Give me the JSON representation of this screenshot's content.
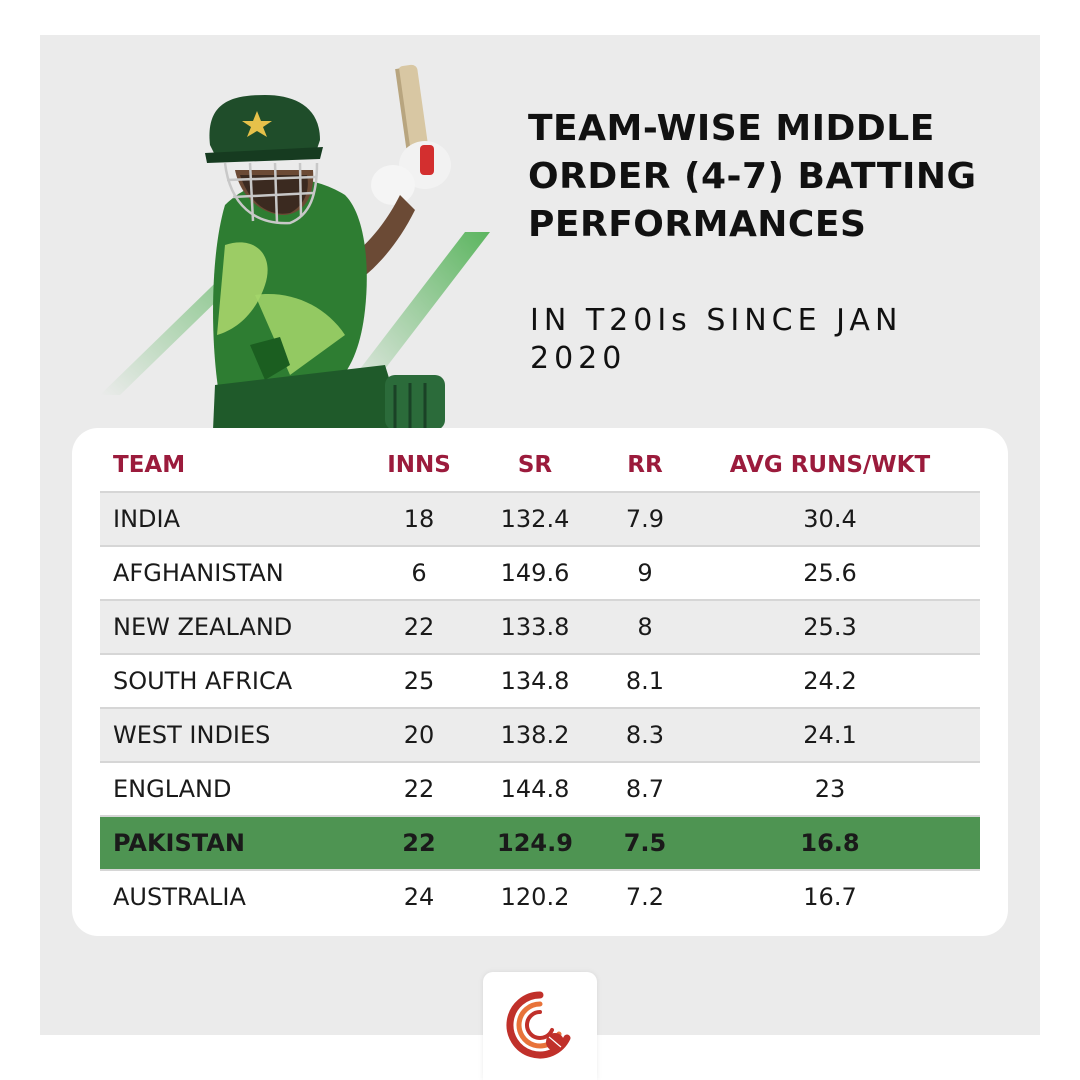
{
  "colors": {
    "background": "#ebebeb",
    "header_text": "#9b1b3c",
    "highlight_row": "#4e9452",
    "accent_green": "#4caf50",
    "logo_red": "#c0302a",
    "logo_orange": "#e8733a"
  },
  "heading": {
    "title": "TEAM-WISE MIDDLE ORDER (4-7) BATTING PERFORMANCES",
    "subtitle": "IN T20Is SINCE JAN 2020"
  },
  "icons": {
    "player": "cricket-batsman-image",
    "logo": "cricket-ball-logo-icon"
  },
  "chart_data": {
    "type": "table",
    "columns": [
      "TEAM",
      "INNS",
      "SR",
      "RR",
      "AVG RUNS/WKT"
    ],
    "rows": [
      [
        "INDIA",
        "18",
        "132.4",
        "7.9",
        "30.4"
      ],
      [
        "AFGHANISTAN",
        "6",
        "149.6",
        "9",
        "25.6"
      ],
      [
        "NEW ZEALAND",
        "22",
        "133.8",
        "8",
        "25.3"
      ],
      [
        "SOUTH AFRICA",
        "25",
        "134.8",
        "8.1",
        "24.2"
      ],
      [
        "WEST INDIES",
        "20",
        "138.2",
        "8.3",
        "24.1"
      ],
      [
        "ENGLAND",
        "22",
        "144.8",
        "8.7",
        "23"
      ],
      [
        "PAKISTAN",
        "22",
        "124.9",
        "7.5",
        "16.8"
      ],
      [
        "AUSTRALIA",
        "24",
        "120.2",
        "7.2",
        "16.7"
      ]
    ],
    "highlighted_team": "PAKISTAN"
  }
}
